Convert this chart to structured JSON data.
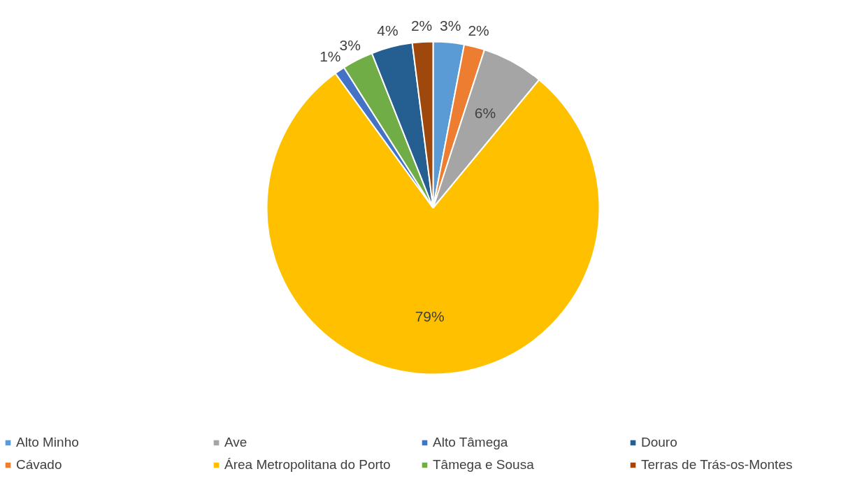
{
  "chart_data": {
    "type": "pie",
    "categories": [
      "Alto Minho",
      "Cávado",
      "Ave",
      "Área Metropolitana do Porto",
      "Alto Tâmega",
      "Tâmega e Sousa",
      "Douro",
      "Terras de Trás-os-Montes"
    ],
    "values": [
      3,
      2,
      6,
      79,
      1,
      3,
      4,
      2
    ],
    "value_labels": [
      "3%",
      "2%",
      "6%",
      "79%",
      "1%",
      "3%",
      "4%",
      "2%"
    ],
    "colors": [
      "#5b9bd5",
      "#ed7d31",
      "#a5a5a5",
      "#ffc000",
      "#4472c4",
      "#70ad47",
      "#255e91",
      "#9e480e"
    ],
    "legend": "bottom"
  }
}
